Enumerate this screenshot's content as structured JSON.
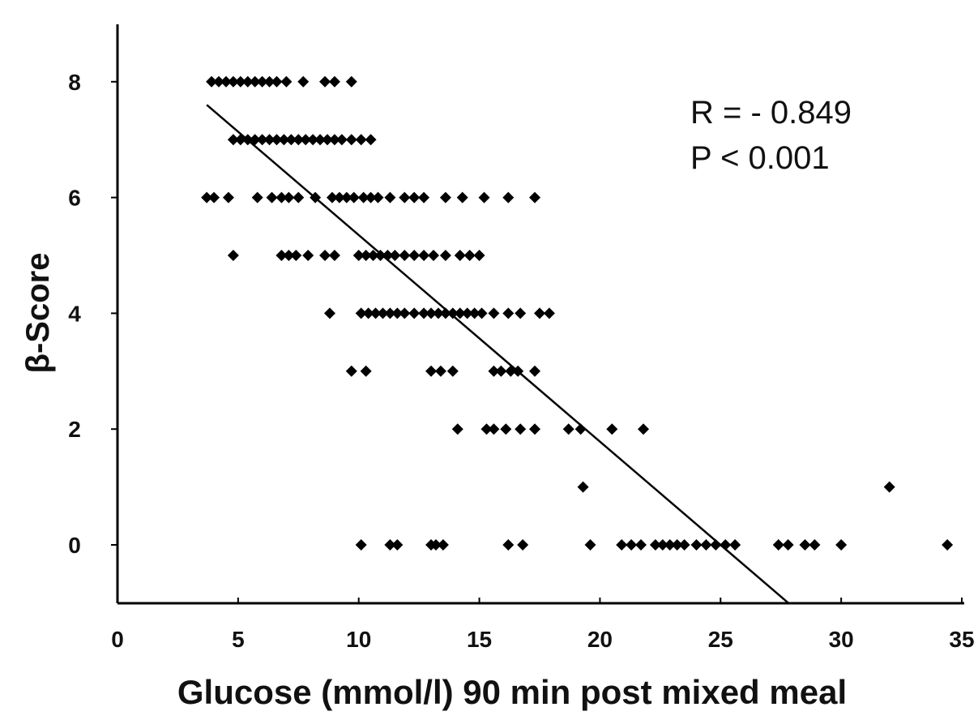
{
  "chart_data": {
    "type": "scatter",
    "title": "",
    "xlabel": "Glucose (mmol/l) 90 min post mixed meal",
    "ylabel": "β-Score",
    "xlim": [
      0,
      35
    ],
    "ylim": [
      -1,
      9
    ],
    "x_ticks": [
      "0",
      "5",
      "10",
      "15",
      "20",
      "25",
      "30",
      "35"
    ],
    "y_ticks": [
      "0",
      "2",
      "4",
      "6",
      "8"
    ],
    "annotations": [
      "R = - 0.849",
      "P < 0.001"
    ],
    "grid": false,
    "legend": "none",
    "marker_color": "#000000",
    "series": [
      {
        "points": [
          [
            3.9,
            8
          ],
          [
            4.2,
            8
          ],
          [
            4.5,
            8
          ],
          [
            4.8,
            8
          ],
          [
            5.1,
            8
          ],
          [
            5.4,
            8
          ],
          [
            5.7,
            8
          ],
          [
            6.0,
            8
          ],
          [
            6.3,
            8
          ],
          [
            6.6,
            8
          ],
          [
            7.0,
            8
          ],
          [
            7.7,
            8
          ],
          [
            8.6,
            8
          ],
          [
            9.0,
            8
          ],
          [
            9.7,
            8
          ],
          [
            4.8,
            7
          ],
          [
            5.1,
            7
          ],
          [
            5.4,
            7
          ],
          [
            5.7,
            7
          ],
          [
            6.0,
            7
          ],
          [
            6.3,
            7
          ],
          [
            6.6,
            7
          ],
          [
            6.9,
            7
          ],
          [
            7.2,
            7
          ],
          [
            7.5,
            7
          ],
          [
            7.8,
            7
          ],
          [
            8.1,
            7
          ],
          [
            8.4,
            7
          ],
          [
            8.7,
            7
          ],
          [
            9.0,
            7
          ],
          [
            9.3,
            7
          ],
          [
            9.7,
            7
          ],
          [
            10.1,
            7
          ],
          [
            10.5,
            7
          ],
          [
            3.7,
            6
          ],
          [
            4.0,
            6
          ],
          [
            4.6,
            6
          ],
          [
            5.8,
            6
          ],
          [
            6.4,
            6
          ],
          [
            6.8,
            6
          ],
          [
            7.1,
            6
          ],
          [
            7.5,
            6
          ],
          [
            8.2,
            6
          ],
          [
            8.9,
            6
          ],
          [
            9.2,
            6
          ],
          [
            9.5,
            6
          ],
          [
            9.8,
            6
          ],
          [
            10.2,
            6
          ],
          [
            10.5,
            6
          ],
          [
            10.8,
            6
          ],
          [
            11.3,
            6
          ],
          [
            11.9,
            6
          ],
          [
            12.3,
            6
          ],
          [
            12.7,
            6
          ],
          [
            13.6,
            6
          ],
          [
            14.3,
            6
          ],
          [
            15.2,
            6
          ],
          [
            16.2,
            6
          ],
          [
            17.3,
            6
          ],
          [
            4.8,
            5
          ],
          [
            6.8,
            5
          ],
          [
            7.1,
            5
          ],
          [
            7.4,
            5
          ],
          [
            7.9,
            5
          ],
          [
            8.6,
            5
          ],
          [
            9.0,
            5
          ],
          [
            10.0,
            5
          ],
          [
            10.3,
            5
          ],
          [
            10.6,
            5
          ],
          [
            10.9,
            5
          ],
          [
            11.2,
            5
          ],
          [
            11.5,
            5
          ],
          [
            11.9,
            5
          ],
          [
            12.3,
            5
          ],
          [
            12.7,
            5
          ],
          [
            13.1,
            5
          ],
          [
            13.6,
            5
          ],
          [
            14.2,
            5
          ],
          [
            14.6,
            5
          ],
          [
            15.0,
            5
          ],
          [
            8.8,
            4
          ],
          [
            10.1,
            4
          ],
          [
            10.4,
            4
          ],
          [
            10.7,
            4
          ],
          [
            11.0,
            4
          ],
          [
            11.3,
            4
          ],
          [
            11.6,
            4
          ],
          [
            11.9,
            4
          ],
          [
            12.3,
            4
          ],
          [
            12.7,
            4
          ],
          [
            13.0,
            4
          ],
          [
            13.3,
            4
          ],
          [
            13.6,
            4
          ],
          [
            13.9,
            4
          ],
          [
            14.2,
            4
          ],
          [
            14.5,
            4
          ],
          [
            14.8,
            4
          ],
          [
            15.1,
            4
          ],
          [
            15.6,
            4
          ],
          [
            16.2,
            4
          ],
          [
            16.7,
            4
          ],
          [
            17.5,
            4
          ],
          [
            17.9,
            4
          ],
          [
            9.7,
            3
          ],
          [
            10.3,
            3
          ],
          [
            13.0,
            3
          ],
          [
            13.4,
            3
          ],
          [
            13.9,
            3
          ],
          [
            15.6,
            3
          ],
          [
            15.9,
            3
          ],
          [
            16.3,
            3
          ],
          [
            16.6,
            3
          ],
          [
            17.3,
            3
          ],
          [
            14.1,
            2
          ],
          [
            15.3,
            2
          ],
          [
            15.6,
            2
          ],
          [
            16.1,
            2
          ],
          [
            16.7,
            2
          ],
          [
            17.3,
            2
          ],
          [
            18.7,
            2
          ],
          [
            19.2,
            2
          ],
          [
            20.5,
            2
          ],
          [
            21.8,
            2
          ],
          [
            19.3,
            1
          ],
          [
            32.0,
            1
          ],
          [
            10.1,
            0
          ],
          [
            11.3,
            0
          ],
          [
            11.6,
            0
          ],
          [
            13.0,
            0
          ],
          [
            13.2,
            0
          ],
          [
            13.5,
            0
          ],
          [
            16.2,
            0
          ],
          [
            16.8,
            0
          ],
          [
            19.6,
            0
          ],
          [
            20.9,
            0
          ],
          [
            21.3,
            0
          ],
          [
            21.7,
            0
          ],
          [
            22.3,
            0
          ],
          [
            22.6,
            0
          ],
          [
            22.9,
            0
          ],
          [
            23.2,
            0
          ],
          [
            23.5,
            0
          ],
          [
            24.0,
            0
          ],
          [
            24.4,
            0
          ],
          [
            24.8,
            0
          ],
          [
            25.2,
            0
          ],
          [
            25.6,
            0
          ],
          [
            27.4,
            0
          ],
          [
            27.8,
            0
          ],
          [
            28.5,
            0
          ],
          [
            28.9,
            0
          ],
          [
            30.0,
            0
          ],
          [
            34.4,
            0
          ]
        ]
      }
    ],
    "trendline": {
      "x": [
        3.7,
        27.8
      ],
      "y": [
        7.6,
        -1
      ]
    }
  }
}
